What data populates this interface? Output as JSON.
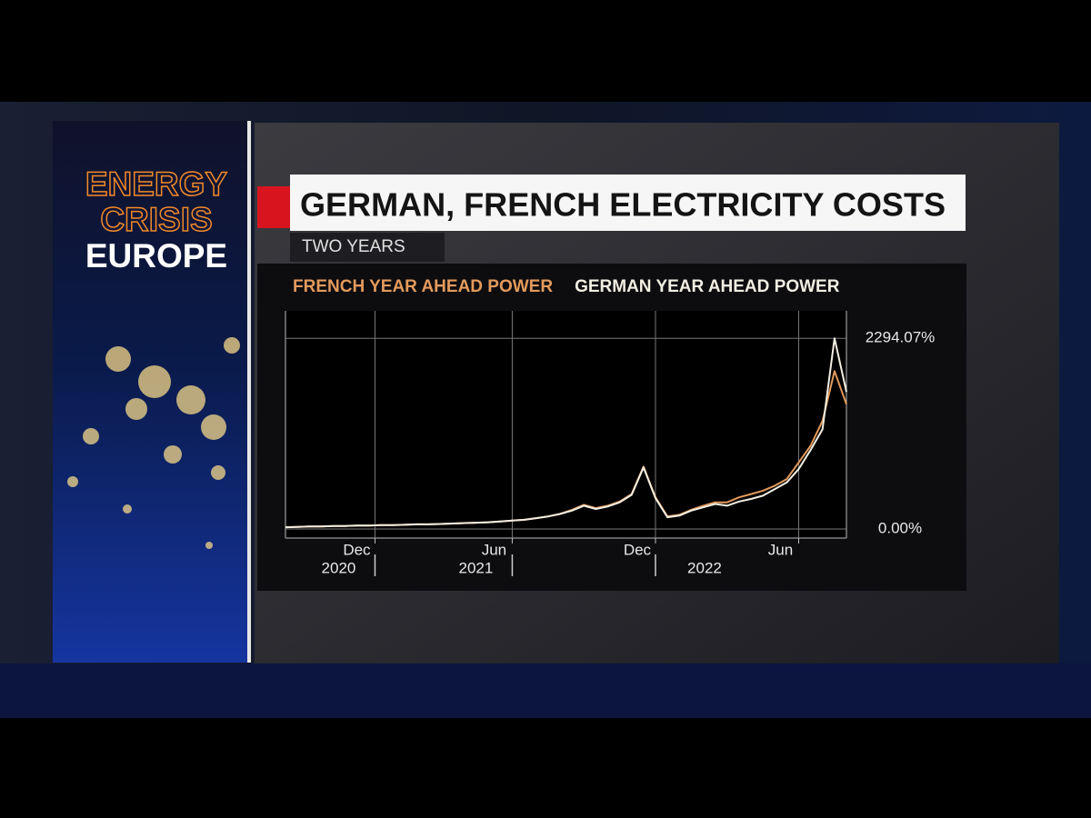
{
  "side_panel": {
    "lines": [
      "ENERGY",
      "CRISIS",
      "EUROPE"
    ]
  },
  "chart_data": {
    "type": "line",
    "title": "GERMAN, FRENCH ELECTRICITY COSTS",
    "subtitle": "TWO YEARS",
    "series": [
      {
        "name": "FRENCH YEAR AHEAD POWER",
        "color": "#e39a5c",
        "values": [
          20,
          25,
          30,
          30,
          35,
          35,
          40,
          40,
          45,
          45,
          50,
          55,
          55,
          60,
          65,
          70,
          75,
          80,
          90,
          100,
          110,
          130,
          150,
          180,
          230,
          290,
          250,
          280,
          330,
          420,
          750,
          380,
          150,
          170,
          230,
          280,
          320,
          320,
          380,
          420,
          460,
          520,
          600,
          800,
          1000,
          1300,
          1900,
          1500
        ]
      },
      {
        "name": "GERMAN YEAR AHEAD POWER",
        "color": "#f2eee2",
        "values": [
          20,
          25,
          30,
          30,
          35,
          35,
          40,
          40,
          45,
          45,
          50,
          55,
          55,
          60,
          65,
          70,
          75,
          80,
          90,
          100,
          110,
          130,
          150,
          180,
          220,
          280,
          240,
          270,
          320,
          410,
          740,
          370,
          140,
          160,
          220,
          260,
          300,
          280,
          330,
          360,
          400,
          480,
          560,
          720,
          950,
          1200,
          2294.07,
          1650
        ]
      }
    ],
    "xlim": [
      0,
      47
    ],
    "xticks": [
      {
        "value": 7.5,
        "label": "Dec"
      },
      {
        "value": 19,
        "label": "Jun"
      },
      {
        "value": 31,
        "label": "Dec"
      },
      {
        "value": 43,
        "label": "Jun"
      }
    ],
    "xyears": [
      {
        "value": 7.5,
        "label": "2020"
      },
      {
        "value": 19,
        "label": "2021"
      },
      {
        "value": 31,
        "label": "2022"
      }
    ],
    "ylim": [
      -110,
      2625
    ],
    "yticks": [
      {
        "value": 0,
        "label": "0.00%"
      },
      {
        "value": 2294.07,
        "label": "2294.07%"
      }
    ],
    "grid": true
  }
}
